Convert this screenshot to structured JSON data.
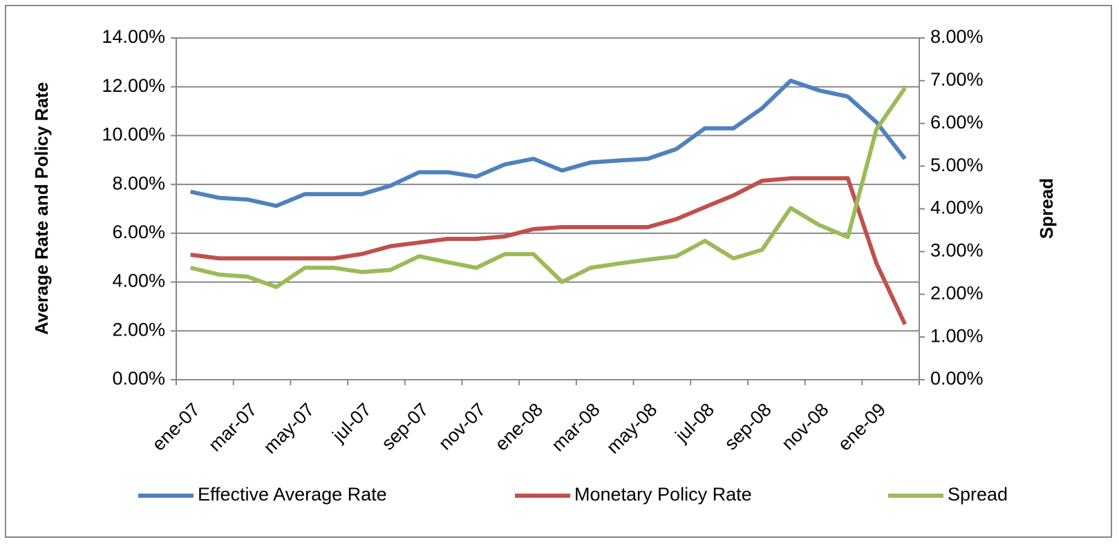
{
  "chart_data": {
    "type": "line",
    "categories": [
      "ene-07",
      null,
      "mar-07",
      null,
      "may-07",
      null,
      "jul-07",
      null,
      "sep-07",
      null,
      "nov-07",
      null,
      "ene-08",
      null,
      "mar-08",
      null,
      "may-08",
      null,
      "jul-08",
      null,
      "sep-08",
      null,
      "nov-08",
      null,
      "ene-09",
      null
    ],
    "ylabel": "Average Rate  and  Policy  Rate",
    "y2label": "Spread",
    "ylim": [
      0,
      14
    ],
    "yticks": [
      {
        "value": 0,
        "label": "0.00%"
      },
      {
        "value": 2,
        "label": "2.00%"
      },
      {
        "value": 4,
        "label": "4.00%"
      },
      {
        "value": 6,
        "label": "6.00%"
      },
      {
        "value": 8,
        "label": "8.00%"
      },
      {
        "value": 10,
        "label": "10.00%"
      },
      {
        "value": 12,
        "label": "12.00%"
      },
      {
        "value": 14,
        "label": "14.00%"
      }
    ],
    "y2lim": [
      0,
      8
    ],
    "y2ticks": [
      {
        "value": 0,
        "label": "0.00%"
      },
      {
        "value": 1,
        "label": "1.00%"
      },
      {
        "value": 2,
        "label": "2.00%"
      },
      {
        "value": 3,
        "label": "3.00%"
      },
      {
        "value": 4,
        "label": "4.00%"
      },
      {
        "value": 5,
        "label": "5.00%"
      },
      {
        "value": 6,
        "label": "6.00%"
      },
      {
        "value": 7,
        "label": "7.00%"
      },
      {
        "value": 8,
        "label": "8.00%"
      }
    ],
    "grid": true,
    "legend": "bottom",
    "series": [
      {
        "name": "Effective Average Rate",
        "color": "#4f81bd",
        "values": [
          7.7,
          7.45,
          7.38,
          7.12,
          7.6,
          7.6,
          7.6,
          7.95,
          8.5,
          8.5,
          8.32,
          8.82,
          9.05,
          8.57,
          8.9,
          8.98,
          9.05,
          9.45,
          10.3,
          10.3,
          11.12,
          12.25,
          11.85,
          11.6,
          10.55,
          9.05
        ]
      },
      {
        "name": "Monetary Policy Rate",
        "color": "#c0504d",
        "values": [
          5.12,
          4.97,
          4.97,
          4.97,
          4.97,
          4.97,
          5.15,
          5.47,
          5.62,
          5.77,
          5.77,
          5.87,
          6.17,
          6.25,
          6.25,
          6.25,
          6.25,
          6.58,
          7.07,
          7.55,
          8.15,
          8.25,
          8.25,
          8.25,
          4.77,
          2.27
        ]
      },
      {
        "name": "Spread",
        "color": "#9bbb59",
        "axis": "y2",
        "values": [
          2.62,
          2.46,
          2.41,
          2.17,
          2.62,
          2.62,
          2.52,
          2.57,
          2.89,
          2.75,
          2.62,
          2.94,
          2.94,
          2.29,
          2.62,
          2.72,
          2.81,
          2.89,
          3.25,
          2.84,
          3.04,
          4.02,
          3.62,
          3.34,
          5.86,
          6.83
        ]
      }
    ]
  }
}
